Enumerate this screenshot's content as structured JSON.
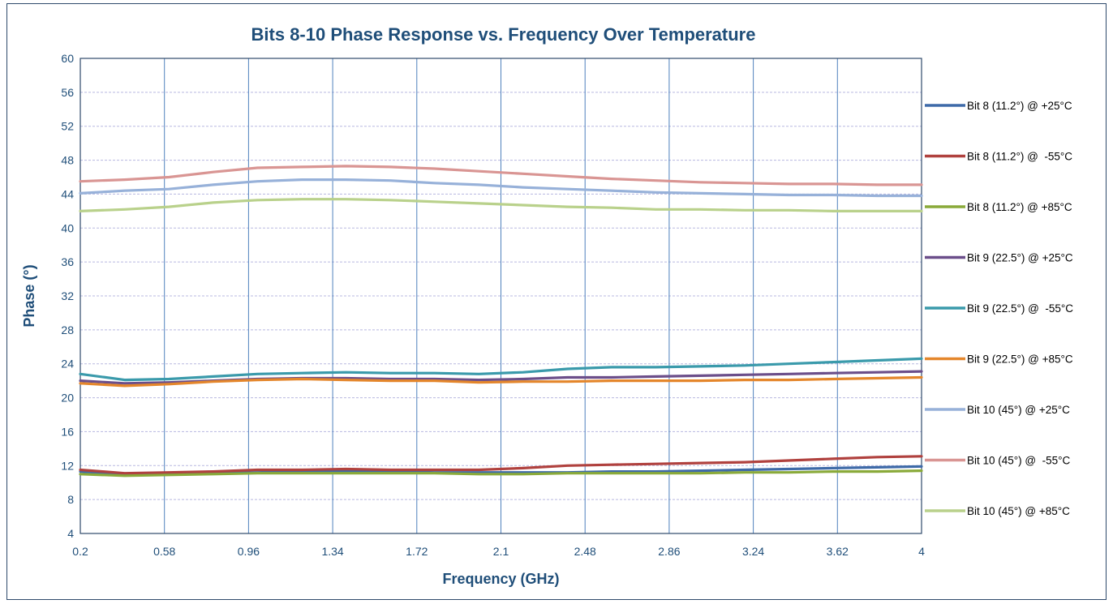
{
  "chart_data": {
    "type": "line",
    "title": "Bits 8-10 Phase Response vs. Frequency Over Temperature",
    "xlabel": "Frequency (GHz)",
    "ylabel": "Phase (°)",
    "xlim": [
      0.2,
      4
    ],
    "ylim": [
      4,
      60
    ],
    "x_ticks": [
      "0.2",
      "0.58",
      "0.96",
      "1.34",
      "1.72",
      "2.1",
      "2.48",
      "2.86",
      "3.24",
      "3.62",
      "4"
    ],
    "y_ticks": [
      "4",
      "8",
      "12",
      "16",
      "20",
      "24",
      "28",
      "32",
      "36",
      "40",
      "44",
      "48",
      "52",
      "56",
      "60"
    ],
    "grid": true,
    "legend_position": "right",
    "series": [
      {
        "name": "Bit 8 (11.2°) @ +25°C",
        "color": "#3e6aa8",
        "x": [
          0.2,
          0.4,
          0.6,
          0.8,
          1.0,
          1.2,
          1.4,
          1.6,
          1.8,
          2.0,
          2.2,
          2.4,
          2.6,
          2.8,
          3.0,
          3.2,
          3.4,
          3.6,
          3.8,
          4.0
        ],
        "y": [
          11.3,
          11.0,
          11.0,
          11.1,
          11.2,
          11.3,
          11.3,
          11.3,
          11.2,
          11.2,
          11.2,
          11.2,
          11.3,
          11.3,
          11.4,
          11.5,
          11.6,
          11.7,
          11.8,
          11.9
        ]
      },
      {
        "name": "Bit 8 (11.2°) @  -55°C",
        "color": "#b0413e",
        "x": [
          0.2,
          0.4,
          0.6,
          0.8,
          1.0,
          1.2,
          1.4,
          1.6,
          1.8,
          2.0,
          2.2,
          2.4,
          2.6,
          2.8,
          3.0,
          3.2,
          3.4,
          3.6,
          3.8,
          4.0
        ],
        "y": [
          11.5,
          11.1,
          11.2,
          11.3,
          11.5,
          11.5,
          11.6,
          11.5,
          11.5,
          11.5,
          11.7,
          12.0,
          12.1,
          12.2,
          12.3,
          12.4,
          12.6,
          12.8,
          13.0,
          13.1
        ]
      },
      {
        "name": "Bit 8 (11.2°) @ +85°C",
        "color": "#8aaa3a",
        "x": [
          0.2,
          0.4,
          0.6,
          0.8,
          1.0,
          1.2,
          1.4,
          1.6,
          1.8,
          2.0,
          2.2,
          2.4,
          2.6,
          2.8,
          3.0,
          3.2,
          3.4,
          3.6,
          3.8,
          4.0
        ],
        "y": [
          11.0,
          10.8,
          10.9,
          11.0,
          11.1,
          11.1,
          11.1,
          11.1,
          11.1,
          11.0,
          11.0,
          11.1,
          11.1,
          11.1,
          11.1,
          11.2,
          11.2,
          11.3,
          11.3,
          11.4
        ]
      },
      {
        "name": "Bit 9 (22.5°) @ +25°C",
        "color": "#6b4e8a",
        "x": [
          0.2,
          0.4,
          0.6,
          0.8,
          1.0,
          1.2,
          1.4,
          1.6,
          1.8,
          2.0,
          2.2,
          2.4,
          2.6,
          2.8,
          3.0,
          3.2,
          3.4,
          3.6,
          3.8,
          4.0
        ],
        "y": [
          22.0,
          21.7,
          21.8,
          22.0,
          22.2,
          22.3,
          22.3,
          22.2,
          22.2,
          22.1,
          22.2,
          22.4,
          22.4,
          22.5,
          22.6,
          22.7,
          22.8,
          22.9,
          23.0,
          23.1
        ]
      },
      {
        "name": "Bit 9 (22.5°) @  -55°C",
        "color": "#3a9aab",
        "x": [
          0.2,
          0.4,
          0.6,
          0.8,
          1.0,
          1.2,
          1.4,
          1.6,
          1.8,
          2.0,
          2.2,
          2.4,
          2.6,
          2.8,
          3.0,
          3.2,
          3.4,
          3.6,
          3.8,
          4.0
        ],
        "y": [
          22.8,
          22.1,
          22.2,
          22.5,
          22.8,
          22.9,
          23.0,
          22.9,
          22.9,
          22.8,
          23.0,
          23.4,
          23.6,
          23.6,
          23.7,
          23.8,
          24.0,
          24.2,
          24.4,
          24.6
        ]
      },
      {
        "name": "Bit 9 (22.5°) @ +85°C",
        "color": "#e4862b",
        "x": [
          0.2,
          0.4,
          0.6,
          0.8,
          1.0,
          1.2,
          1.4,
          1.6,
          1.8,
          2.0,
          2.2,
          2.4,
          2.6,
          2.8,
          3.0,
          3.2,
          3.4,
          3.6,
          3.8,
          4.0
        ],
        "y": [
          21.7,
          21.4,
          21.6,
          21.9,
          22.1,
          22.2,
          22.1,
          22.0,
          22.0,
          21.8,
          21.9,
          21.9,
          22.0,
          22.0,
          22.0,
          22.1,
          22.1,
          22.2,
          22.3,
          22.4
        ]
      },
      {
        "name": "Bit 10 (45°) @ +25°C",
        "color": "#97b1d9",
        "x": [
          0.2,
          0.4,
          0.6,
          0.8,
          1.0,
          1.2,
          1.4,
          1.6,
          1.8,
          2.0,
          2.2,
          2.4,
          2.6,
          2.8,
          3.0,
          3.2,
          3.4,
          3.6,
          3.8,
          4.0
        ],
        "y": [
          44.1,
          44.4,
          44.6,
          45.1,
          45.5,
          45.7,
          45.7,
          45.6,
          45.3,
          45.1,
          44.8,
          44.6,
          44.4,
          44.2,
          44.1,
          44.0,
          43.9,
          43.9,
          43.8,
          43.8
        ]
      },
      {
        "name": "Bit 10 (45°) @  -55°C",
        "color": "#d99593",
        "x": [
          0.2,
          0.4,
          0.6,
          0.8,
          1.0,
          1.2,
          1.4,
          1.6,
          1.8,
          2.0,
          2.2,
          2.4,
          2.6,
          2.8,
          3.0,
          3.2,
          3.4,
          3.6,
          3.8,
          4.0
        ],
        "y": [
          45.5,
          45.7,
          46.0,
          46.6,
          47.1,
          47.2,
          47.3,
          47.2,
          47.0,
          46.7,
          46.4,
          46.1,
          45.8,
          45.6,
          45.4,
          45.3,
          45.2,
          45.2,
          45.1,
          45.1
        ]
      },
      {
        "name": "Bit 10 (45°) @ +85°C",
        "color": "#b9d18b",
        "x": [
          0.2,
          0.4,
          0.6,
          0.8,
          1.0,
          1.2,
          1.4,
          1.6,
          1.8,
          2.0,
          2.2,
          2.4,
          2.6,
          2.8,
          3.0,
          3.2,
          3.4,
          3.6,
          3.8,
          4.0
        ],
        "y": [
          42.0,
          42.2,
          42.5,
          43.0,
          43.3,
          43.4,
          43.4,
          43.3,
          43.1,
          42.9,
          42.7,
          42.5,
          42.4,
          42.2,
          42.2,
          42.1,
          42.1,
          42.0,
          42.0,
          42.0
        ]
      }
    ]
  },
  "colors": {
    "title": "#1f4e79",
    "axis_text": "#1f4e79",
    "frame": "#2f4a6b",
    "vertical_grid": "#4f81bd",
    "horizontal_grid": "#b8b8e0"
  }
}
